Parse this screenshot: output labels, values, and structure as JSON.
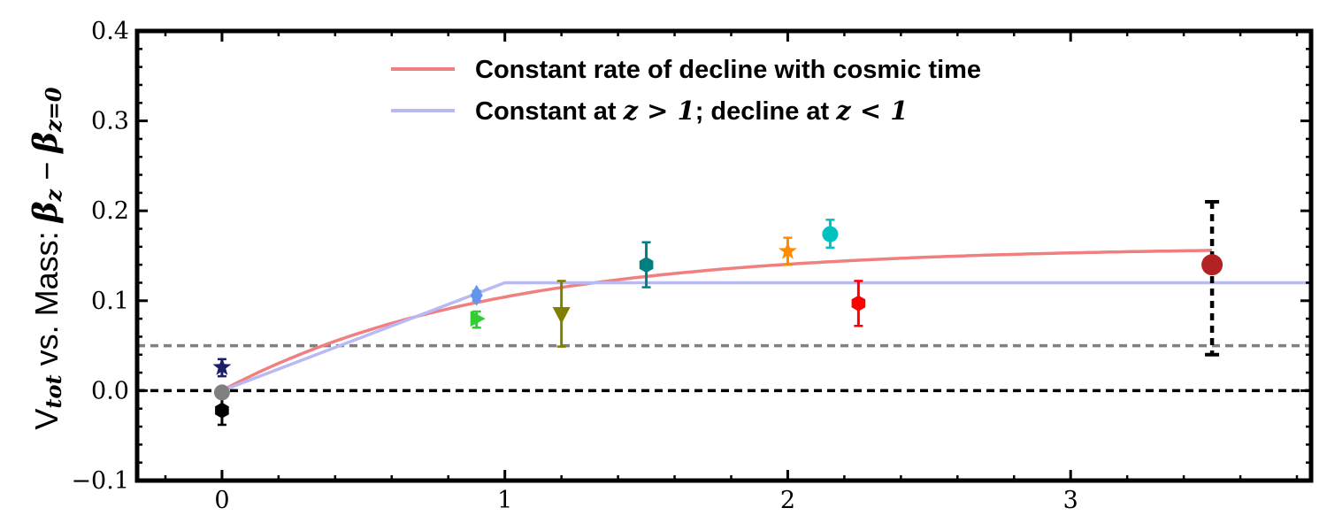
{
  "chart_data": {
    "type": "scatter",
    "title": "",
    "xlabel": "",
    "ylabel": {
      "prefix": "V",
      "prefix_sub": "tot",
      "middle": " vs. Mass: ",
      "math": "β",
      "math_sub": "z",
      "minus": " − ",
      "math2": "β",
      "math2_sub": "z=0"
    },
    "xlim": [
      -0.3,
      3.85
    ],
    "ylim": [
      -0.1,
      0.4
    ],
    "x_ticks": [
      0,
      1,
      2,
      3
    ],
    "x_tick_labels": [
      "0",
      "1",
      "2",
      "3"
    ],
    "y_ticks": [
      -0.1,
      0.0,
      0.1,
      0.2,
      0.3,
      0.4
    ],
    "y_tick_labels": [
      "−0.1",
      "0.0",
      "0.1",
      "0.2",
      "0.3",
      "0.4"
    ],
    "reference_lines": [
      {
        "name": "zero-line",
        "y": 0.0,
        "color": "#000000",
        "style": "dashed"
      },
      {
        "name": "gray-line",
        "y": 0.05,
        "color": "#808080",
        "style": "dashed"
      }
    ],
    "lines": [
      {
        "name": "constant-rate",
        "label": "Constant rate of decline with cosmic time",
        "color": "#f08080",
        "model": "exp",
        "amplitude": 0.16,
        "scale": 0.95
      },
      {
        "name": "constant-then-decline",
        "label": "Constant at",
        "color": "#b9b9f5",
        "x": [
          0,
          1,
          3.85
        ],
        "y": [
          0,
          0.12,
          0.12
        ]
      }
    ],
    "legend": {
      "position": "top-center",
      "entries": [
        {
          "color": "#f08080",
          "parts": [
            {
              "t": "Constant rate of decline with cosmic time",
              "m": false
            }
          ]
        },
        {
          "color": "#b9b9f5",
          "parts": [
            {
              "t": "Constant at ",
              "m": false
            },
            {
              "t": "z > 1",
              "m": true
            },
            {
              "t": "; decline at ",
              "m": false
            },
            {
              "t": "z < 1",
              "m": true
            }
          ]
        }
      ]
    },
    "series": [
      {
        "name": "black-hexagon",
        "marker": "hexagon",
        "color": "#000000",
        "x": 0.0,
        "y": -0.022,
        "err_low": 0.016,
        "err_high": 0.014
      },
      {
        "name": "gray-circle",
        "marker": "circle",
        "color": "#808080",
        "x": 0.0,
        "y": -0.002,
        "err_low": 0.006,
        "err_high": 0.004
      },
      {
        "name": "navy-star",
        "marker": "star",
        "color": "#1a1f66",
        "x": 0.0,
        "y": 0.026,
        "err_low": 0.01,
        "err_high": 0.009
      },
      {
        "name": "blue-diamond",
        "marker": "diamond",
        "color": "#6495ed",
        "x": 0.9,
        "y": 0.106,
        "err_low": 0.006,
        "err_high": 0.005
      },
      {
        "name": "green-triangle-right",
        "marker": "triangle-right",
        "color": "#32cd32",
        "x": 0.9,
        "y": 0.08,
        "err_low": 0.01,
        "err_high": 0.008
      },
      {
        "name": "olive-triangle-down",
        "marker": "triangle-down",
        "color": "#808000",
        "x": 1.2,
        "y": 0.085,
        "err_low": 0.036,
        "err_high": 0.037
      },
      {
        "name": "teal-hexagon",
        "marker": "hexagon",
        "color": "#008080",
        "x": 1.5,
        "y": 0.14,
        "err_low": 0.025,
        "err_high": 0.025
      },
      {
        "name": "orange-star",
        "marker": "star",
        "color": "#ff8c00",
        "x": 2.0,
        "y": 0.155,
        "err_low": 0.015,
        "err_high": 0.015
      },
      {
        "name": "cyan-circle",
        "marker": "circle",
        "color": "#00c0c0",
        "x": 2.15,
        "y": 0.174,
        "err_low": 0.015,
        "err_high": 0.016
      },
      {
        "name": "red-hexagon",
        "marker": "hexagon",
        "color": "#ff0000",
        "x": 2.25,
        "y": 0.097,
        "err_low": 0.025,
        "err_high": 0.025
      },
      {
        "name": "darkred-circle",
        "marker": "circle",
        "color": "#b22222",
        "x": 3.5,
        "y": 0.14,
        "err_low": 0.1,
        "err_high": 0.07,
        "err_style": "dashed",
        "err_color": "#000000"
      }
    ]
  }
}
